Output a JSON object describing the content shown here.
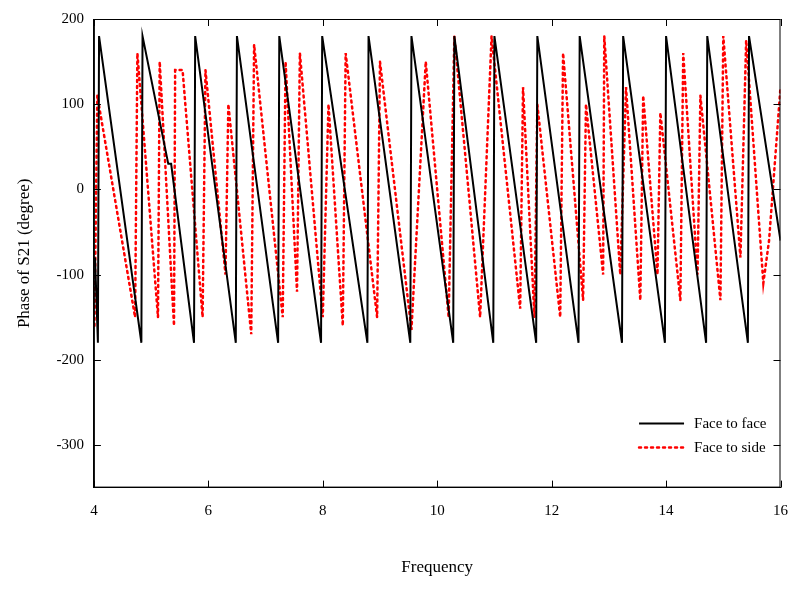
{
  "chart_data": {
    "type": "line",
    "x_label": "Frequency",
    "y_label": "Phase of S21 (degree)",
    "xlim": [
      4,
      16
    ],
    "xticks": [
      4,
      6,
      8,
      10,
      12,
      14,
      16
    ],
    "ylim": [
      -350,
      200
    ],
    "yticks": [
      -300,
      -200,
      -100,
      0,
      100,
      200
    ],
    "grid": false,
    "legend": "bottom-right",
    "series": [
      {
        "name": "Face to face",
        "color": "#000000",
        "line_style": "solid",
        "marker": "none",
        "x": [
          4.02,
          4.07,
          4.09,
          4.83,
          4.85,
          5.3,
          5.35,
          5.75,
          5.77,
          6.48,
          6.5,
          7.22,
          7.24,
          7.97,
          7.99,
          8.78,
          8.8,
          9.53,
          9.55,
          10.28,
          10.3,
          10.98,
          11.0,
          11.73,
          11.75,
          12.47,
          12.49,
          13.23,
          13.25,
          13.98,
          14.0,
          14.7,
          14.72,
          15.43,
          15.45,
          16.0
        ],
        "values": [
          -80,
          -180,
          180,
          -180,
          180,
          30,
          30,
          -180,
          180,
          -180,
          180,
          -180,
          180,
          -180,
          180,
          -180,
          180,
          -180,
          180,
          -180,
          180,
          -180,
          180,
          -180,
          180,
          -180,
          180,
          -180,
          180,
          -180,
          180,
          -180,
          180,
          -180,
          180,
          -60
        ]
      },
      {
        "name": "Face to side",
        "color": "#ff0000",
        "line_style": "dotted",
        "marker": "none",
        "x": [
          4.01,
          4.06,
          4.72,
          4.76,
          5.12,
          5.15,
          5.4,
          5.42,
          5.55,
          5.9,
          5.95,
          6.3,
          6.35,
          6.75,
          6.8,
          7.3,
          7.35,
          7.55,
          7.6,
          8.0,
          8.1,
          8.35,
          8.4,
          8.95,
          9.0,
          9.55,
          9.8,
          10.2,
          10.3,
          10.75,
          10.95,
          11.45,
          11.5,
          11.7,
          11.75,
          12.15,
          12.2,
          12.55,
          12.6,
          12.9,
          12.92,
          13.2,
          13.3,
          13.55,
          13.6,
          13.85,
          13.9,
          14.25,
          14.3,
          14.55,
          14.6,
          14.95,
          15.0,
          15.3,
          15.4,
          15.7,
          15.8,
          16.0
        ],
        "values": [
          -160,
          110,
          -150,
          160,
          -150,
          150,
          -160,
          140,
          140,
          -150,
          140,
          -100,
          100,
          -170,
          170,
          -150,
          150,
          -120,
          160,
          -150,
          100,
          -160,
          160,
          -150,
          150,
          -165,
          150,
          -150,
          180,
          -150,
          180,
          -140,
          120,
          -150,
          100,
          -150,
          160,
          -130,
          100,
          -100,
          180,
          -100,
          120,
          -130,
          110,
          -100,
          90,
          -130,
          160,
          -100,
          110,
          -130,
          180,
          -80,
          175,
          -110,
          -60,
          120
        ]
      }
    ]
  }
}
